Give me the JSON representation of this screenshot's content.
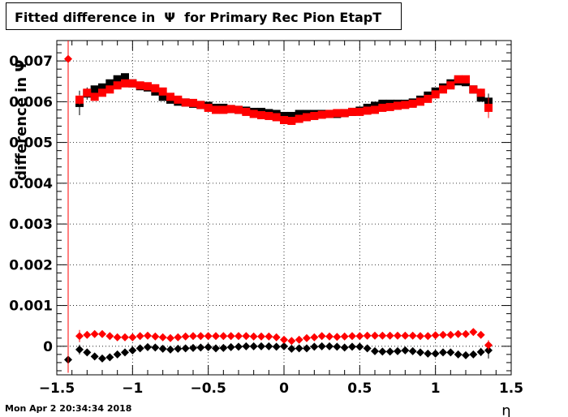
{
  "chart_data": {
    "type": "scatter",
    "title": "Fitted difference in  Ψ  for Primary Rec Pion EtapT",
    "xlabel": "η",
    "ylabel": "difference in Ψ",
    "xlim": [
      -1.5,
      1.5
    ],
    "ylim": [
      -0.0007,
      0.0075
    ],
    "x_ticks": [
      -1.5,
      -1,
      -0.5,
      0,
      0.5,
      1,
      1.5
    ],
    "x_tick_labels": [
      "−1.5",
      "−1",
      "−0.5",
      "0",
      "0.5",
      "1",
      "1.5"
    ],
    "y_ticks": [
      0,
      0.001,
      0.002,
      0.003,
      0.004,
      0.005,
      0.006,
      0.007
    ],
    "y_tick_labels": [
      "0",
      "0.001",
      "0.002",
      "0.003",
      "0.004",
      "0.005",
      "0.006",
      "0.007"
    ],
    "grid": true,
    "series": [
      {
        "marker": "square",
        "color": "#000000",
        "x": [
          -1.35,
          -1.3,
          -1.25,
          -1.2,
          -1.15,
          -1.1,
          -1.05,
          -1.0,
          -0.95,
          -0.9,
          -0.85,
          -0.8,
          -0.75,
          -0.7,
          -0.65,
          -0.6,
          -0.55,
          -0.5,
          -0.45,
          -0.4,
          -0.35,
          -0.3,
          -0.25,
          -0.2,
          -0.15,
          -0.1,
          -0.05,
          0.0,
          0.05,
          0.1,
          0.15,
          0.2,
          0.25,
          0.3,
          0.35,
          0.4,
          0.45,
          0.5,
          0.55,
          0.6,
          0.65,
          0.7,
          0.75,
          0.8,
          0.85,
          0.9,
          0.95,
          1.0,
          1.05,
          1.1,
          1.15,
          1.2,
          1.25,
          1.3,
          1.35
        ],
        "y": [
          0.00597,
          0.0062,
          0.0063,
          0.00635,
          0.00645,
          0.00655,
          0.0066,
          0.00645,
          0.00638,
          0.00635,
          0.00625,
          0.00612,
          0.00605,
          0.006,
          0.00598,
          0.00595,
          0.00592,
          0.0059,
          0.00585,
          0.00585,
          0.00582,
          0.0058,
          0.00578,
          0.00575,
          0.00575,
          0.00572,
          0.0057,
          0.00565,
          0.00565,
          0.0057,
          0.0057,
          0.0057,
          0.0057,
          0.0057,
          0.0057,
          0.00572,
          0.00575,
          0.00578,
          0.00585,
          0.0059,
          0.00595,
          0.00595,
          0.00595,
          0.00595,
          0.00598,
          0.00605,
          0.00615,
          0.00625,
          0.00635,
          0.00645,
          0.0065,
          0.00648,
          0.0063,
          0.0061,
          0.006
        ],
        "err": [
          0.0003,
          0.00015,
          0,
          0,
          0,
          0,
          0,
          0,
          0,
          0,
          0,
          0,
          0,
          0,
          0,
          0,
          0,
          0,
          0,
          0,
          0,
          0,
          0,
          0,
          0,
          0,
          0,
          0,
          0,
          0,
          0,
          0,
          0,
          0,
          0,
          0,
          0,
          0,
          0,
          0,
          0,
          0,
          0,
          0,
          0,
          0,
          0,
          0,
          0,
          0,
          0,
          0,
          0,
          0.0001,
          0.0002
        ]
      },
      {
        "marker": "square",
        "color": "#ff0000",
        "x": [
          -1.35,
          -1.3,
          -1.25,
          -1.2,
          -1.15,
          -1.1,
          -1.05,
          -1.0,
          -0.95,
          -0.9,
          -0.85,
          -0.8,
          -0.75,
          -0.7,
          -0.65,
          -0.6,
          -0.55,
          -0.5,
          -0.45,
          -0.4,
          -0.35,
          -0.3,
          -0.25,
          -0.2,
          -0.15,
          -0.1,
          -0.05,
          0.0,
          0.05,
          0.1,
          0.15,
          0.2,
          0.25,
          0.3,
          0.35,
          0.4,
          0.45,
          0.5,
          0.55,
          0.6,
          0.65,
          0.7,
          0.75,
          0.8,
          0.85,
          0.9,
          0.95,
          1.0,
          1.05,
          1.1,
          1.15,
          1.2,
          1.25,
          1.3,
          1.35
        ],
        "y": [
          0.00605,
          0.00622,
          0.00612,
          0.00622,
          0.0063,
          0.0064,
          0.00645,
          0.00645,
          0.0064,
          0.00638,
          0.00633,
          0.00625,
          0.00612,
          0.00605,
          0.00598,
          0.00597,
          0.00592,
          0.00585,
          0.0058,
          0.0058,
          0.00582,
          0.0058,
          0.00575,
          0.0057,
          0.00567,
          0.00565,
          0.00562,
          0.00555,
          0.00553,
          0.00558,
          0.00562,
          0.00565,
          0.00568,
          0.0057,
          0.00572,
          0.00572,
          0.00575,
          0.00575,
          0.00578,
          0.0058,
          0.00585,
          0.00587,
          0.0059,
          0.00592,
          0.00595,
          0.006,
          0.00607,
          0.00618,
          0.0063,
          0.0064,
          0.00655,
          0.00655,
          0.0063,
          0.00622,
          0.00585
        ],
        "err": [
          0.00012,
          0.0001,
          0,
          0,
          0,
          0,
          0,
          0,
          0,
          0,
          0,
          0,
          0,
          0,
          0,
          0,
          0,
          0,
          0,
          0,
          0,
          0,
          0,
          0,
          0,
          0,
          0,
          0,
          0,
          0,
          0,
          0,
          0,
          0,
          0,
          0,
          0,
          0,
          0,
          0,
          0,
          0,
          0,
          0,
          0,
          0,
          0,
          0,
          0,
          0,
          0,
          0,
          0,
          0.0001,
          0.00025
        ]
      },
      {
        "marker": "diamond",
        "color": "#000000",
        "x": [
          -1.425,
          -1.35,
          -1.3,
          -1.25,
          -1.2,
          -1.15,
          -1.1,
          -1.05,
          -1.0,
          -0.95,
          -0.9,
          -0.85,
          -0.8,
          -0.75,
          -0.7,
          -0.65,
          -0.6,
          -0.55,
          -0.5,
          -0.45,
          -0.4,
          -0.35,
          -0.3,
          -0.25,
          -0.2,
          -0.15,
          -0.1,
          -0.05,
          0.0,
          0.05,
          0.1,
          0.15,
          0.2,
          0.25,
          0.3,
          0.35,
          0.4,
          0.45,
          0.5,
          0.55,
          0.6,
          0.65,
          0.7,
          0.75,
          0.8,
          0.85,
          0.9,
          0.95,
          1.0,
          1.05,
          1.1,
          1.15,
          1.2,
          1.25,
          1.3,
          1.35
        ],
        "y": [
          -0.00033,
          -8e-05,
          -0.00015,
          -0.00025,
          -0.0003,
          -0.00027,
          -0.0002,
          -0.00015,
          -0.0001,
          -5e-05,
          -2e-05,
          -3e-05,
          -6e-05,
          -8e-05,
          -6e-05,
          -5e-05,
          -4e-05,
          -3e-05,
          -2e-05,
          -5e-05,
          -4e-05,
          -2e-05,
          -1e-05,
          0.0,
          0.0,
          0.0,
          0.0,
          -1e-05,
          0.0,
          -6e-05,
          -5e-05,
          -5e-05,
          -1e-05,
          0.0,
          0.0,
          -1e-05,
          -3e-05,
          -1e-05,
          -1e-05,
          -5e-05,
          -0.00012,
          -0.00013,
          -0.00013,
          -0.00012,
          -0.0001,
          -0.00012,
          -0.00015,
          -0.00018,
          -0.00018,
          -0.00015,
          -0.00015,
          -0.0002,
          -0.00022,
          -0.0002,
          -0.00014,
          -0.0001
        ],
        "err": [
          0,
          0.00012,
          8e-05,
          0,
          0,
          0,
          0,
          0,
          0,
          0,
          0,
          0,
          0,
          0,
          0,
          0,
          0,
          0,
          0,
          0,
          0,
          0,
          0,
          0,
          0,
          0,
          0,
          0,
          0,
          0,
          0,
          0,
          0,
          0,
          0,
          0,
          0,
          0,
          0,
          0,
          0,
          0,
          0,
          0,
          0,
          0,
          0,
          0,
          0,
          0,
          0,
          0,
          0,
          0,
          0.0001,
          0.0002
        ]
      },
      {
        "marker": "diamond",
        "color": "#ff0000",
        "x": [
          -1.425,
          -1.35,
          -1.3,
          -1.25,
          -1.2,
          -1.15,
          -1.1,
          -1.05,
          -1.0,
          -0.95,
          -0.9,
          -0.85,
          -0.8,
          -0.75,
          -0.7,
          -0.65,
          -0.6,
          -0.55,
          -0.5,
          -0.45,
          -0.4,
          -0.35,
          -0.3,
          -0.25,
          -0.2,
          -0.15,
          -0.1,
          -0.05,
          0.0,
          0.05,
          0.1,
          0.15,
          0.2,
          0.25,
          0.3,
          0.35,
          0.4,
          0.45,
          0.5,
          0.55,
          0.6,
          0.65,
          0.7,
          0.75,
          0.8,
          0.85,
          0.9,
          0.95,
          1.0,
          1.05,
          1.1,
          1.15,
          1.2,
          1.25,
          1.3,
          1.35
        ],
        "y": [
          0.00705,
          0.00025,
          0.00028,
          0.0003,
          0.0003,
          0.00025,
          0.00022,
          0.00022,
          0.00022,
          0.00025,
          0.00026,
          0.00024,
          0.00022,
          0.0002,
          0.00022,
          0.00024,
          0.00025,
          0.00025,
          0.00025,
          0.00025,
          0.00025,
          0.00025,
          0.00025,
          0.00025,
          0.00024,
          0.00024,
          0.00024,
          0.00022,
          0.00016,
          0.00013,
          0.00016,
          0.0002,
          0.00022,
          0.00025,
          0.00024,
          0.00023,
          0.00024,
          0.00025,
          0.00025,
          0.00026,
          0.00026,
          0.00026,
          0.00026,
          0.00026,
          0.00026,
          0.00026,
          0.00025,
          0.00025,
          0.00027,
          0.00028,
          0.00028,
          0.0003,
          0.0003,
          0.00035,
          0.00028,
          3e-05
        ],
        "err": [
          0.0077,
          0.00015,
          8e-05,
          0,
          0,
          0,
          0,
          0,
          0,
          0,
          0,
          0,
          0,
          0,
          0,
          0,
          0,
          0,
          0,
          0,
          0,
          0,
          0,
          0,
          0,
          0,
          0,
          0,
          0,
          0,
          0,
          0,
          0,
          0,
          0,
          0,
          0,
          0,
          0,
          0,
          0,
          0,
          0,
          0,
          0,
          0,
          0,
          0,
          0,
          0,
          0,
          0,
          0,
          0,
          0,
          0.00012
        ]
      }
    ]
  },
  "footer": {
    "date": "Mon Apr  2 20:34:34 2018"
  }
}
